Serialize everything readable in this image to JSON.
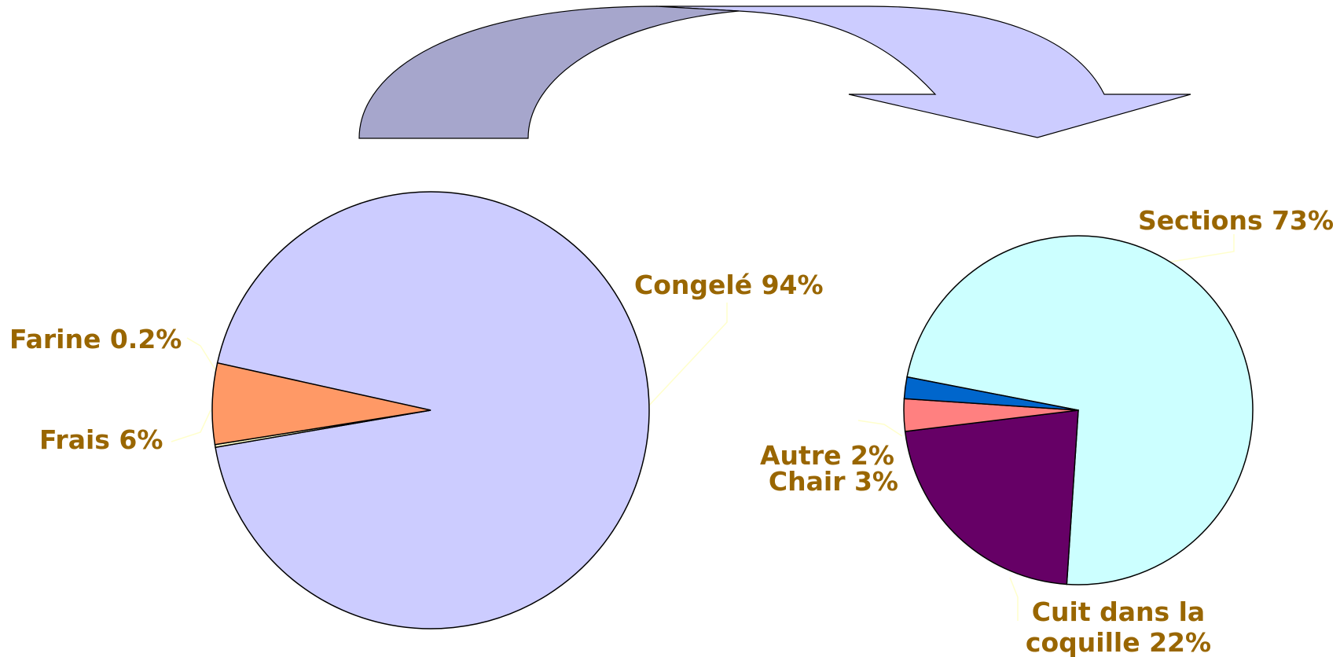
{
  "chart_data": [
    {
      "type": "pie",
      "slices": [
        {
          "label": "Congelé",
          "value": 94,
          "value_text": "94%",
          "color": "#ccccff"
        },
        {
          "label": "Farine",
          "value": 0.2,
          "value_text": "0.2%",
          "color": "#ffffcc"
        },
        {
          "label": "Frais",
          "value": 6,
          "value_text": "6%",
          "color": "#ff9966"
        }
      ]
    },
    {
      "type": "pie",
      "slices": [
        {
          "label": "Sections",
          "value": 73,
          "value_text": "73%",
          "color": "#ccffff"
        },
        {
          "label": "Cuit dans la coquille",
          "label_lines": [
            "Cuit dans la",
            "coquille 22%"
          ],
          "value": 22,
          "value_text": "22%",
          "color": "#660066"
        },
        {
          "label": "Chair",
          "value": 3,
          "value_text": "3%",
          "color": "#ff8080"
        },
        {
          "label": "Autre",
          "value": 2,
          "value_text": "2%",
          "color": "#0066cc"
        }
      ]
    }
  ],
  "colors": {
    "label_text": "#996600",
    "leader_line": "#ffffcc",
    "arrow_front": "#ccccff",
    "arrow_back": "#a6a6cc",
    "outline": "#000000"
  },
  "decor": {
    "arrow": "curved-arrow-icon"
  }
}
